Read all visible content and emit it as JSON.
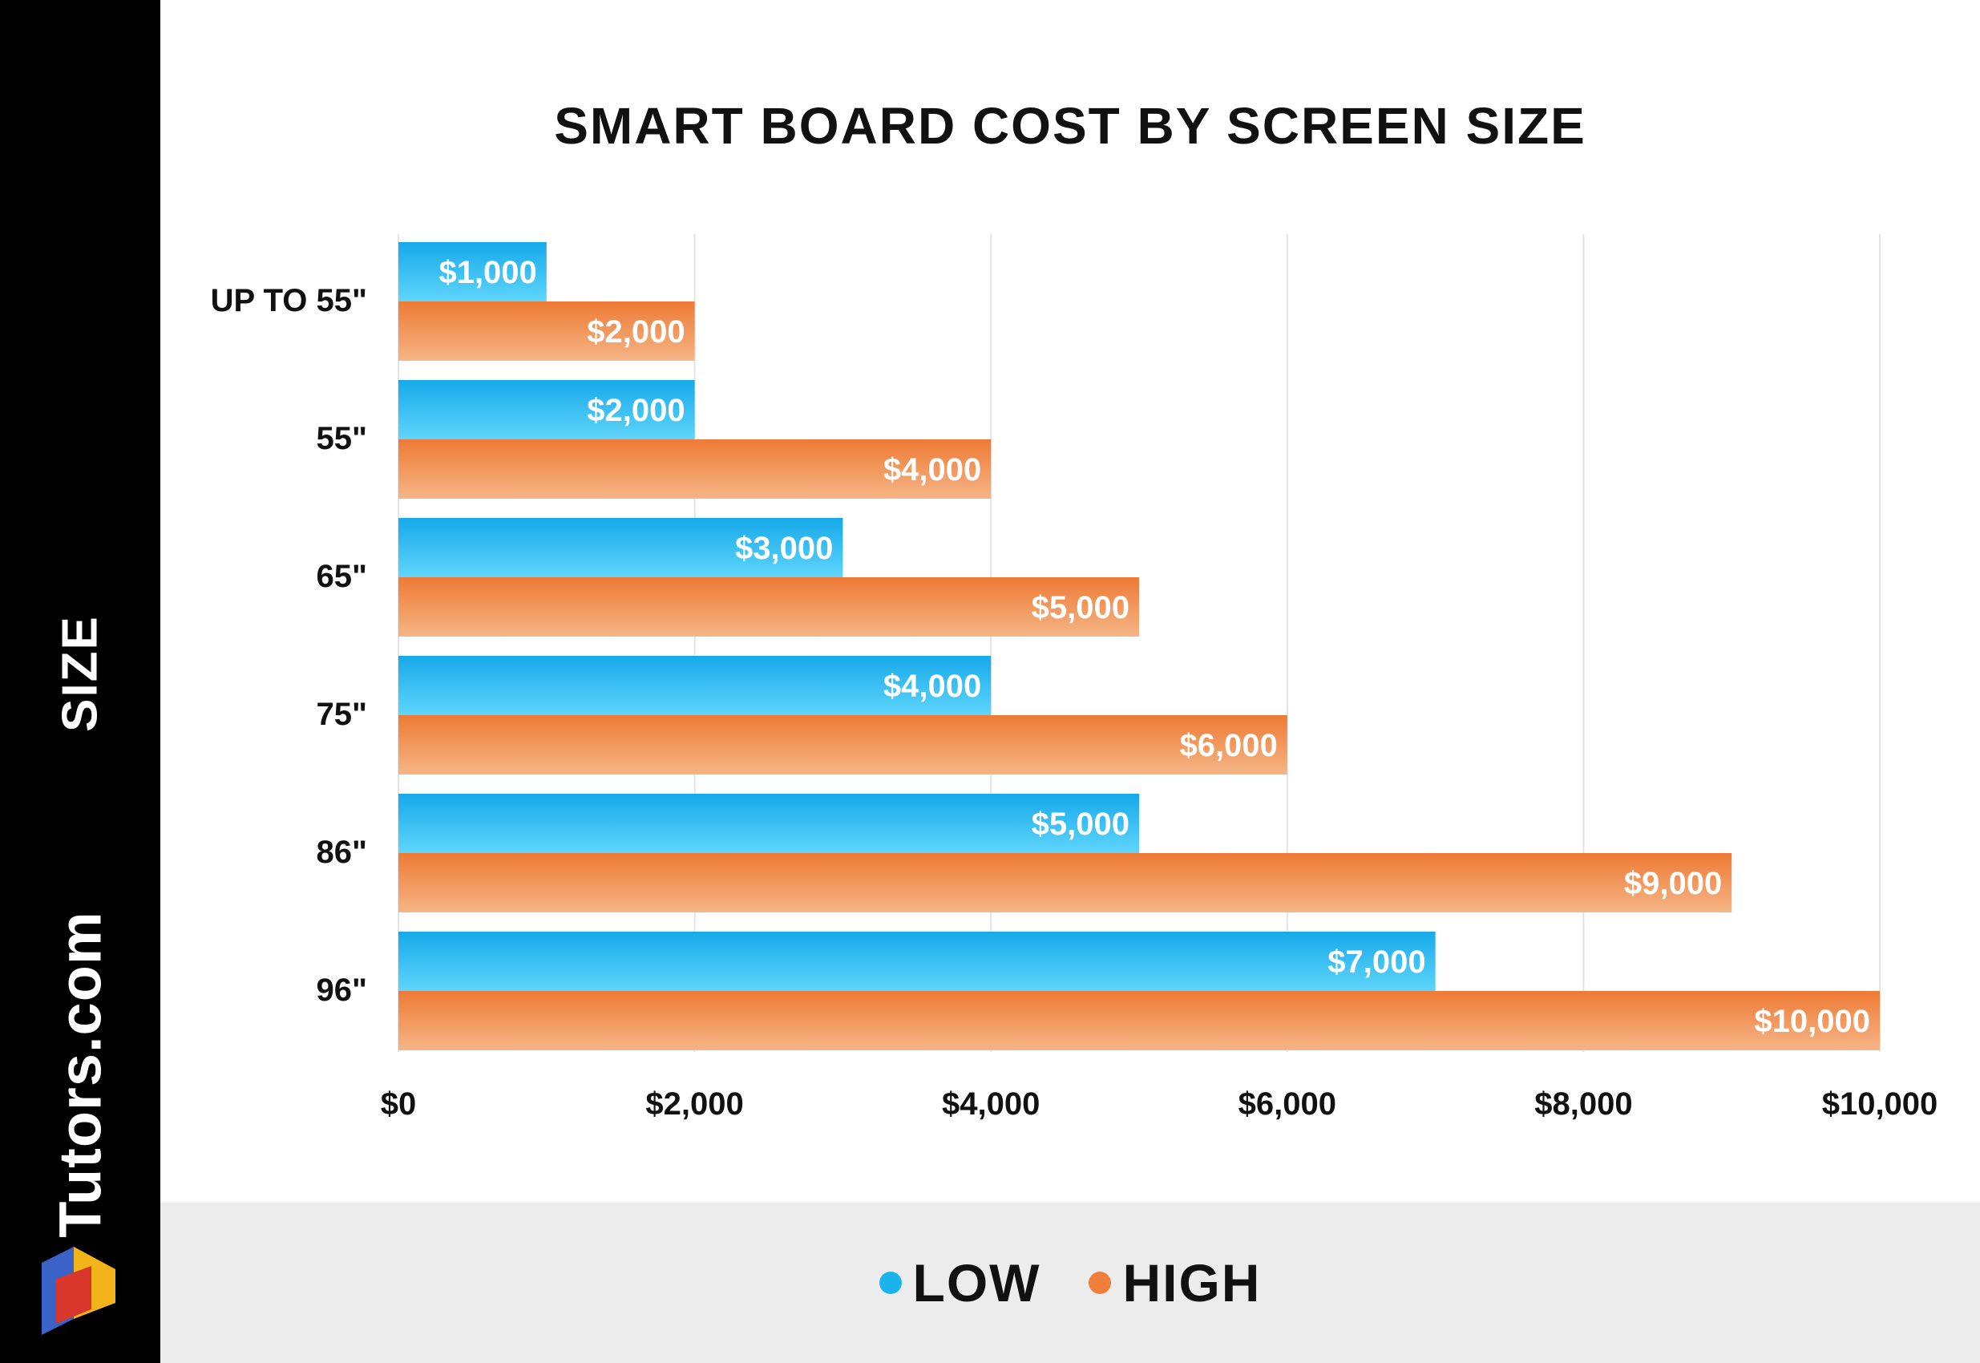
{
  "sidebar": {
    "axis_title": "SIZE",
    "brand": "Tutors.com",
    "brand_icon": "cube-logo-icon"
  },
  "legend": {
    "items": [
      {
        "label": "LOW",
        "color": "#1ab3ec"
      },
      {
        "label": "HIGH",
        "color": "#f07f3c"
      }
    ]
  },
  "chart_data": {
    "type": "bar",
    "orientation": "horizontal",
    "title": "SMART BOARD COST BY SCREEN SIZE",
    "ylabel": "SIZE",
    "xlabel": "",
    "categories": [
      "UP TO 55\"",
      "55\"",
      "65\"",
      "75\"",
      "86\"",
      "96\""
    ],
    "series": [
      {
        "name": "LOW",
        "color": "#1ab3ec",
        "values": [
          1000,
          2000,
          3000,
          4000,
          5000,
          7000
        ],
        "labels": [
          "$1,000",
          "$2,000",
          "$3,000",
          "$4,000",
          "$5,000",
          "$7,000"
        ]
      },
      {
        "name": "HIGH",
        "color": "#f07f3c",
        "values": [
          2000,
          4000,
          5000,
          6000,
          9000,
          10000
        ],
        "labels": [
          "$2,000",
          "$4,000",
          "$5,000",
          "$6,000",
          "$9,000",
          "$10,000"
        ]
      }
    ],
    "xlim": [
      0,
      10000
    ],
    "x_ticks": [
      0,
      2000,
      4000,
      6000,
      8000,
      10000
    ],
    "x_tick_labels": [
      "$0",
      "$2,000",
      "$4,000",
      "$6,000",
      "$8,000",
      "$10,000"
    ],
    "grid": true,
    "legend_position": "bottom"
  }
}
